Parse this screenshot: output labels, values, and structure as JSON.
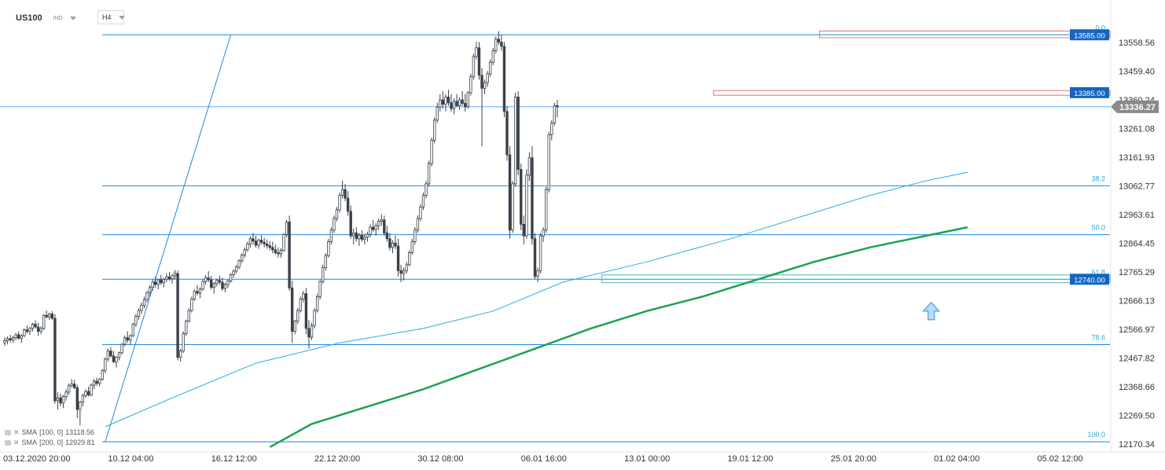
{
  "header": {
    "symbol": "US100",
    "symbol_type": "IND",
    "timeframe": "H4"
  },
  "indicators": [
    {
      "label": "SMA",
      "params": "[100,  0]",
      "value": "13118.56",
      "color": "#29abe2"
    },
    {
      "label": "SMA",
      "params": "[200,  0]",
      "value": "12929.81",
      "color": "#1aa350"
    }
  ],
  "colors": {
    "level_line": "#1e88e5",
    "fib_label": "#29abe2",
    "resistance_zone": "#e57373",
    "support_zone": "#4db6ac",
    "price_label_bg": "#1565c0",
    "current_label_bg": "#8a8a8a",
    "sma100": "#29abe2",
    "sma200": "#1aa350",
    "candle": "#3a4149",
    "arrow": "#5aaee5"
  },
  "chart_data": {
    "type": "candlestick",
    "y_axis_ticks": [
      "13558.56",
      "13459.40",
      "13360.24",
      "13261.08",
      "13161.93",
      "13062.77",
      "12963.61",
      "12864.45",
      "12765.29",
      "12666.13",
      "12566.97",
      "12467.82",
      "12368.66",
      "12269.50",
      "12170.34"
    ],
    "ylim": [
      12170.34,
      13600
    ],
    "x_axis_ticks": [
      "03.12.2020  20:00",
      "10.12  04:00",
      "16.12  12:00",
      "22.12  20:00",
      "30.12  08:00",
      "06.01  16:00",
      "13.01  00:00",
      "19.01  12:00",
      "25.01  20:00",
      "01.02  04:00",
      "05.02  12:00"
    ],
    "x_tick_index": [
      0,
      37,
      74,
      111,
      148,
      185,
      222,
      259,
      296,
      333,
      370
    ],
    "current_price": "13336.27",
    "fibonacci_levels": [
      {
        "label": "0.0",
        "price": 13585
      },
      {
        "label": "38.2",
        "price": 13063
      },
      {
        "label": "50.0",
        "price": 12894
      },
      {
        "label": "61.8",
        "price": 12740
      },
      {
        "label": "78.6",
        "price": 12514
      },
      {
        "label": "100.0",
        "price": 12178
      }
    ],
    "price_labels": [
      {
        "text": "13585.00",
        "price": 13585
      },
      {
        "text": "13385.00",
        "price": 13385
      },
      {
        "text": "12740.00",
        "price": 12740
      }
    ],
    "zones": [
      {
        "kind": "resistance",
        "from_index": 292,
        "top": 13598,
        "bottom": 13575
      },
      {
        "kind": "resistance",
        "from_index": 254,
        "top": 13392,
        "bottom": 13376
      },
      {
        "kind": "support",
        "from_index": 214,
        "top": 12755,
        "bottom": 12728
      }
    ],
    "arrow": {
      "direction": "up",
      "index": 332,
      "price": 12660
    },
    "trend_line": [
      {
        "index": 36,
        "price": 12178
      },
      {
        "index": 81,
        "price": 13585
      }
    ],
    "sma_100": [
      [
        36,
        12230
      ],
      [
        60,
        12330
      ],
      [
        90,
        12450
      ],
      [
        120,
        12520
      ],
      [
        150,
        12570
      ],
      [
        175,
        12630
      ],
      [
        200,
        12730
      ],
      [
        230,
        12800
      ],
      [
        260,
        12880
      ],
      [
        290,
        12970
      ],
      [
        310,
        13030
      ],
      [
        330,
        13080
      ],
      [
        345,
        13110
      ]
    ],
    "sma_200": [
      [
        95,
        12160
      ],
      [
        110,
        12240
      ],
      [
        130,
        12300
      ],
      [
        150,
        12360
      ],
      [
        170,
        12430
      ],
      [
        190,
        12500
      ],
      [
        210,
        12570
      ],
      [
        230,
        12630
      ],
      [
        250,
        12680
      ],
      [
        270,
        12740
      ],
      [
        290,
        12800
      ],
      [
        310,
        12850
      ],
      [
        330,
        12890
      ],
      [
        345,
        12920
      ]
    ],
    "candles": [
      [
        12520,
        12540,
        12510,
        12528
      ],
      [
        12528,
        12542,
        12515,
        12535
      ],
      [
        12535,
        12548,
        12522,
        12530
      ],
      [
        12530,
        12544,
        12520,
        12538
      ],
      [
        12538,
        12555,
        12530,
        12548
      ],
      [
        12548,
        12560,
        12532,
        12536
      ],
      [
        12536,
        12550,
        12520,
        12545
      ],
      [
        12545,
        12570,
        12540,
        12565
      ],
      [
        12565,
        12580,
        12552,
        12560
      ],
      [
        12560,
        12575,
        12548,
        12570
      ],
      [
        12570,
        12590,
        12560,
        12585
      ],
      [
        12585,
        12598,
        12570,
        12575
      ],
      [
        12575,
        12590,
        12545,
        12560
      ],
      [
        12560,
        12578,
        12550,
        12570
      ],
      [
        12570,
        12620,
        12565,
        12615
      ],
      [
        12615,
        12632,
        12605,
        12610
      ],
      [
        12610,
        12625,
        12600,
        12620
      ],
      [
        12620,
        12630,
        12600,
        12605
      ],
      [
        12605,
        12620,
        12310,
        12320
      ],
      [
        12320,
        12350,
        12290,
        12330
      ],
      [
        12330,
        12345,
        12300,
        12312
      ],
      [
        12312,
        12340,
        12295,
        12335
      ],
      [
        12335,
        12360,
        12320,
        12350
      ],
      [
        12350,
        12380,
        12340,
        12372
      ],
      [
        12372,
        12395,
        12365,
        12378
      ],
      [
        12378,
        12392,
        12360,
        12365
      ],
      [
        12365,
        12375,
        12260,
        12290
      ],
      [
        12290,
        12320,
        12235,
        12315
      ],
      [
        12315,
        12345,
        12300,
        12338
      ],
      [
        12338,
        12360,
        12330,
        12352
      ],
      [
        12352,
        12368,
        12335,
        12340
      ],
      [
        12340,
        12380,
        12335,
        12374
      ],
      [
        12374,
        12395,
        12360,
        12388
      ],
      [
        12388,
        12400,
        12372,
        12380
      ],
      [
        12380,
        12398,
        12370,
        12394
      ],
      [
        12394,
        12430,
        12390,
        12424
      ],
      [
        12424,
        12470,
        12415,
        12464
      ],
      [
        12464,
        12500,
        12455,
        12492
      ],
      [
        12492,
        12505,
        12470,
        12475
      ],
      [
        12475,
        12492,
        12450,
        12455
      ],
      [
        12455,
        12475,
        12435,
        12470
      ],
      [
        12470,
        12490,
        12460,
        12486
      ],
      [
        12486,
        12520,
        12480,
        12515
      ],
      [
        12515,
        12545,
        12508,
        12538
      ],
      [
        12538,
        12560,
        12520,
        12530
      ],
      [
        12530,
        12550,
        12515,
        12545
      ],
      [
        12545,
        12590,
        12540,
        12584
      ],
      [
        12584,
        12620,
        12575,
        12612
      ],
      [
        12612,
        12640,
        12600,
        12632
      ],
      [
        12632,
        12660,
        12620,
        12650
      ],
      [
        12650,
        12680,
        12640,
        12670
      ],
      [
        12670,
        12700,
        12660,
        12694
      ],
      [
        12694,
        12720,
        12680,
        12712
      ],
      [
        12712,
        12740,
        12700,
        12730
      ],
      [
        12730,
        12750,
        12710,
        12722
      ],
      [
        12722,
        12742,
        12705,
        12738
      ],
      [
        12738,
        12755,
        12720,
        12728
      ],
      [
        12728,
        12745,
        12712,
        12740
      ],
      [
        12740,
        12760,
        12730,
        12748
      ],
      [
        12748,
        12765,
        12735,
        12742
      ],
      [
        12742,
        12758,
        12725,
        12752
      ],
      [
        12752,
        12772,
        12740,
        12760
      ],
      [
        12760,
        12770,
        12460,
        12470
      ],
      [
        12470,
        12500,
        12455,
        12492
      ],
      [
        12492,
        12560,
        12485,
        12552
      ],
      [
        12552,
        12600,
        12545,
        12595
      ],
      [
        12595,
        12640,
        12590,
        12632
      ],
      [
        12632,
        12680,
        12625,
        12672
      ],
      [
        12672,
        12705,
        12665,
        12698
      ],
      [
        12698,
        12720,
        12685,
        12692
      ],
      [
        12692,
        12712,
        12675,
        12706
      ],
      [
        12706,
        12740,
        12700,
        12732
      ],
      [
        12732,
        12755,
        12720,
        12745
      ],
      [
        12745,
        12768,
        12730,
        12738
      ],
      [
        12738,
        12752,
        12705,
        12712
      ],
      [
        12712,
        12730,
        12690,
        12725
      ],
      [
        12725,
        12742,
        12715,
        12736
      ],
      [
        12736,
        12752,
        12722,
        12730
      ],
      [
        12730,
        12745,
        12700,
        12708
      ],
      [
        12708,
        12728,
        12695,
        12722
      ],
      [
        12722,
        12740,
        12710,
        12734
      ],
      [
        12734,
        12760,
        12728,
        12756
      ],
      [
        12756,
        12775,
        12745,
        12768
      ],
      [
        12768,
        12790,
        12760,
        12782
      ],
      [
        12782,
        12810,
        12775,
        12804
      ],
      [
        12804,
        12830,
        12795,
        12824
      ],
      [
        12824,
        12850,
        12815,
        12842
      ],
      [
        12842,
        12870,
        12835,
        12862
      ],
      [
        12862,
        12888,
        12850,
        12880
      ],
      [
        12880,
        12900,
        12860,
        12872
      ],
      [
        12872,
        12890,
        12850,
        12858
      ],
      [
        12858,
        12880,
        12845,
        12875
      ],
      [
        12875,
        12892,
        12860,
        12868
      ],
      [
        12868,
        12884,
        12850,
        12862
      ],
      [
        12862,
        12878,
        12845,
        12856
      ],
      [
        12856,
        12872,
        12840,
        12850
      ],
      [
        12850,
        12870,
        12830,
        12842
      ],
      [
        12842,
        12860,
        12825,
        12832
      ],
      [
        12832,
        12850,
        12815,
        12828
      ],
      [
        12828,
        12848,
        12815,
        12840
      ],
      [
        12840,
        12900,
        12835,
        12895
      ],
      [
        12895,
        12945,
        12885,
        12938
      ],
      [
        12938,
        12960,
        12700,
        12710
      ],
      [
        12710,
        12735,
        12520,
        12560
      ],
      [
        12560,
        12600,
        12550,
        12595
      ],
      [
        12595,
        12640,
        12585,
        12632
      ],
      [
        12632,
        12680,
        12625,
        12672
      ],
      [
        12672,
        12700,
        12660,
        12690
      ],
      [
        12690,
        12710,
        12550,
        12570
      ],
      [
        12570,
        12600,
        12500,
        12540
      ],
      [
        12540,
        12590,
        12530,
        12580
      ],
      [
        12580,
        12640,
        12570,
        12632
      ],
      [
        12632,
        12690,
        12625,
        12680
      ],
      [
        12680,
        12740,
        12670,
        12732
      ],
      [
        12732,
        12790,
        12725,
        12780
      ],
      [
        12780,
        12830,
        12770,
        12822
      ],
      [
        12822,
        12880,
        12815,
        12870
      ],
      [
        12870,
        12920,
        12860,
        12910
      ],
      [
        12910,
        12960,
        12900,
        12950
      ],
      [
        12950,
        12990,
        12940,
        12980
      ],
      [
        12980,
        13040,
        12970,
        13030
      ],
      [
        13030,
        13080,
        13020,
        13050
      ],
      [
        13050,
        13070,
        13010,
        13020
      ],
      [
        13020,
        13045,
        12960,
        12975
      ],
      [
        12975,
        12995,
        12880,
        12890
      ],
      [
        12890,
        12915,
        12860,
        12900
      ],
      [
        12900,
        12920,
        12870,
        12880
      ],
      [
        12880,
        12900,
        12855,
        12892
      ],
      [
        12892,
        12910,
        12870,
        12878
      ],
      [
        12878,
        12898,
        12860,
        12885
      ],
      [
        12885,
        12905,
        12870,
        12895
      ],
      [
        12895,
        12930,
        12885,
        12920
      ],
      [
        12920,
        12945,
        12905,
        12912
      ],
      [
        12912,
        12935,
        12890,
        12925
      ],
      [
        12925,
        12950,
        12910,
        12940
      ],
      [
        12940,
        12965,
        12925,
        12945
      ],
      [
        12945,
        12960,
        12890,
        12900
      ],
      [
        12900,
        12925,
        12870,
        12880
      ],
      [
        12880,
        12900,
        12840,
        12850
      ],
      [
        12850,
        12875,
        12830,
        12865
      ],
      [
        12865,
        12890,
        12845,
        12855
      ],
      [
        12855,
        12880,
        12750,
        12770
      ],
      [
        12770,
        12790,
        12730,
        12760
      ],
      [
        12760,
        12780,
        12735,
        12770
      ],
      [
        12770,
        12800,
        12760,
        12790
      ],
      [
        12790,
        12840,
        12785,
        12832
      ],
      [
        12832,
        12880,
        12825,
        12870
      ],
      [
        12870,
        12920,
        12860,
        12910
      ],
      [
        12910,
        12960,
        12900,
        12950
      ],
      [
        12950,
        13000,
        12940,
        12990
      ],
      [
        12990,
        13040,
        12980,
        13030
      ],
      [
        13030,
        13080,
        13020,
        13070
      ],
      [
        13070,
        13150,
        13060,
        13140
      ],
      [
        13140,
        13230,
        13130,
        13220
      ],
      [
        13220,
        13300,
        13210,
        13290
      ],
      [
        13290,
        13350,
        13280,
        13335
      ],
      [
        13335,
        13380,
        13320,
        13360
      ],
      [
        13360,
        13390,
        13330,
        13345
      ],
      [
        13345,
        13380,
        13320,
        13370
      ],
      [
        13370,
        13395,
        13340,
        13350
      ],
      [
        13350,
        13380,
        13320,
        13330
      ],
      [
        13330,
        13365,
        13310,
        13355
      ],
      [
        13355,
        13380,
        13335,
        13340
      ],
      [
        13340,
        13370,
        13325,
        13360
      ],
      [
        13360,
        13390,
        13340,
        13348
      ],
      [
        13348,
        13380,
        13320,
        13336
      ],
      [
        13336,
        13390,
        13330,
        13385
      ],
      [
        13385,
        13450,
        13375,
        13440
      ],
      [
        13440,
        13520,
        13430,
        13510
      ],
      [
        13510,
        13560,
        13500,
        13540
      ],
      [
        13540,
        13560,
        13430,
        13445
      ],
      [
        13445,
        13470,
        13200,
        13400
      ],
      [
        13400,
        13430,
        13380,
        13420
      ],
      [
        13420,
        13460,
        13405,
        13450
      ],
      [
        13450,
        13500,
        13440,
        13490
      ],
      [
        13490,
        13540,
        13480,
        13530
      ],
      [
        13530,
        13580,
        13520,
        13570
      ],
      [
        13570,
        13598,
        13550,
        13560
      ],
      [
        13560,
        13585,
        13530,
        13545
      ],
      [
        13545,
        13560,
        13300,
        13320
      ],
      [
        13320,
        13340,
        13150,
        13170
      ],
      [
        13170,
        13200,
        12880,
        12910
      ],
      [
        12910,
        13080,
        12900,
        13070
      ],
      [
        13070,
        13385,
        13060,
        13370
      ],
      [
        13370,
        13390,
        13100,
        13120
      ],
      [
        13120,
        13140,
        12910,
        12930
      ],
      [
        12930,
        12960,
        12860,
        12890
      ],
      [
        12890,
        13120,
        12880,
        13100
      ],
      [
        13100,
        13180,
        13080,
        13160
      ],
      [
        13160,
        13200,
        12860,
        12880
      ],
      [
        12880,
        12900,
        12740,
        12750
      ],
      [
        12750,
        12780,
        12730,
        12770
      ],
      [
        12770,
        12900,
        12760,
        12890
      ],
      [
        12890,
        12920,
        12870,
        12910
      ],
      [
        12910,
        13060,
        12900,
        13050
      ],
      [
        13050,
        13250,
        13040,
        13240
      ],
      [
        13240,
        13290,
        13220,
        13280
      ],
      [
        13280,
        13350,
        13270,
        13340
      ],
      [
        13340,
        13360,
        13300,
        13336
      ]
    ]
  }
}
